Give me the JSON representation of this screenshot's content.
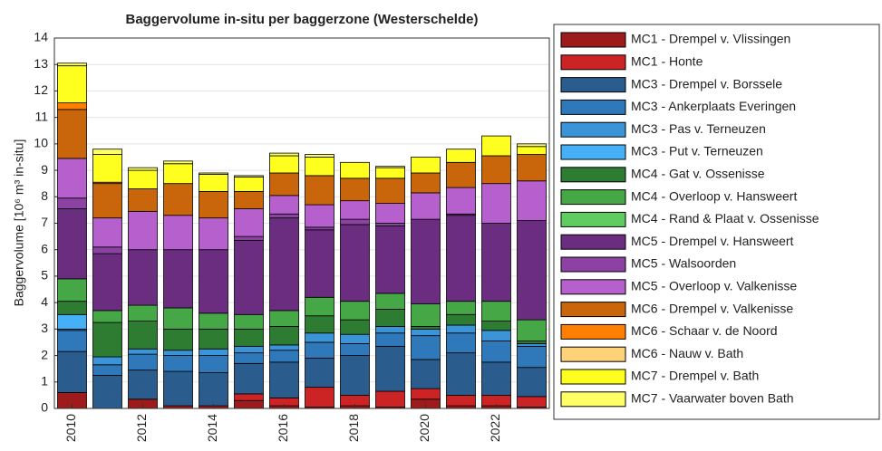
{
  "chart_data": {
    "type": "stacked_bar",
    "title": "Baggervolume in-situ per baggerzone (Westerschelde)",
    "y_label": "Baggervolume [10⁶ m³ in-situ]",
    "categories": [
      "2010",
      null,
      "2012",
      null,
      "2014",
      null,
      "2016",
      null,
      "2018",
      null,
      "2020",
      null,
      "2022",
      null
    ],
    "ylim": [
      0,
      14
    ],
    "yticks": [
      0,
      1,
      2,
      3,
      4,
      5,
      6,
      7,
      8,
      9,
      10,
      11,
      12,
      13,
      14
    ],
    "grid": true,
    "legend": "outside right",
    "series": [
      {
        "name": "MC1 - Drempel v. Vlissingen",
        "color": "#9e1b1b",
        "values": [
          0.6,
          0,
          0.35,
          0.1,
          0.1,
          0.3,
          0.1,
          0.05,
          0.1,
          0.05,
          0.35,
          0.1,
          0.1,
          0.05
        ]
      },
      {
        "name": "MC1 - Honte",
        "color": "#cc2424",
        "values": [
          0,
          0,
          0,
          0,
          0,
          0.25,
          0.3,
          0.75,
          0.4,
          0.6,
          0.4,
          0.4,
          0.4,
          0.4
        ]
      },
      {
        "name": "MC3 - Drempel v. Borssele",
        "color": "#2a5c8e",
        "values": [
          1.55,
          1.25,
          1.1,
          1.3,
          1.25,
          1.15,
          1.35,
          1.1,
          1.5,
          1.7,
          1.1,
          1.6,
          1.25,
          1.1
        ]
      },
      {
        "name": "MC3 - Ankerplaats Everingen",
        "color": "#2f78b9",
        "values": [
          0.8,
          0.4,
          0.6,
          0.6,
          0.65,
          0.4,
          0.45,
          0.6,
          0.45,
          0.5,
          0.9,
          0.75,
          0.8,
          0.8
        ]
      },
      {
        "name": "MC3 - Pas v. Terneuzen",
        "color": "#3b94d8",
        "values": [
          0.05,
          0.3,
          0.2,
          0.2,
          0.25,
          0.25,
          0.2,
          0.35,
          0.35,
          0.25,
          0.25,
          0.3,
          0.4,
          0.1
        ]
      },
      {
        "name": "MC3 - Put v. Terneuzen",
        "color": "#45b0f5",
        "values": [
          0.55,
          0,
          0,
          0,
          0,
          0,
          0,
          0,
          0,
          0,
          0,
          0,
          0,
          0
        ]
      },
      {
        "name": "MC4 - Gat v. Ossenisse",
        "color": "#2e7b32",
        "values": [
          0.5,
          1.3,
          1.05,
          0.8,
          0.75,
          0.65,
          0.7,
          0.65,
          0.55,
          0.65,
          0.1,
          0.4,
          0.35,
          0.1
        ]
      },
      {
        "name": "MC4 - Overloop v. Hansweert",
        "color": "#45a745",
        "values": [
          0.85,
          0.45,
          0.6,
          0.8,
          0.6,
          0.55,
          0.6,
          0.7,
          0.7,
          0.6,
          0.85,
          0.5,
          0.75,
          0.8
        ]
      },
      {
        "name": "MC4 - Rand & Plaat v. Ossenisse",
        "color": "#5fcc5f",
        "values": [
          0,
          0,
          0,
          0,
          0,
          0,
          0,
          0,
          0,
          0,
          0,
          0,
          0,
          0
        ]
      },
      {
        "name": "MC5 - Drempel v. Hansweert",
        "color": "#6b2d7f",
        "values": [
          2.65,
          2.15,
          2.1,
          2.2,
          2.4,
          2.8,
          3.5,
          2.55,
          2.9,
          2.55,
          3.2,
          3.25,
          2.95,
          3.75
        ]
      },
      {
        "name": "MC5 - Walsoorden",
        "color": "#8b42a2",
        "values": [
          0.4,
          0.25,
          0,
          0,
          0,
          0.15,
          0.15,
          0.1,
          0.2,
          0.1,
          0,
          0.05,
          0,
          0
        ]
      },
      {
        "name": "MC5 - Overloop v. Valkenisse",
        "color": "#b560cc",
        "values": [
          1.5,
          1.1,
          1.45,
          1.3,
          1.2,
          1.05,
          0.7,
          0.85,
          0.7,
          0.75,
          1.0,
          1.0,
          1.5,
          1.5
        ]
      },
      {
        "name": "MC6 - Drempel v. Valkenisse",
        "color": "#c9650b",
        "values": [
          1.85,
          1.3,
          0.85,
          1.2,
          1.0,
          0.65,
          0.85,
          1.1,
          0.85,
          0.95,
          0.75,
          0.95,
          1.05,
          1.0
        ]
      },
      {
        "name": "MC6 - Schaar v. de Noord",
        "color": "#ff8000",
        "values": [
          0.25,
          0.05,
          0,
          0,
          0,
          0,
          0,
          0,
          0,
          0,
          0,
          0,
          0,
          0
        ]
      },
      {
        "name": "MC6 - Nauw v. Bath",
        "color": "#ffd27a",
        "values": [
          0,
          0,
          0,
          0,
          0,
          0,
          0,
          0,
          0,
          0,
          0,
          0,
          0,
          0
        ]
      },
      {
        "name": "MC7 - Drempel v. Bath",
        "color": "#ffff1f",
        "values": [
          1.4,
          1.05,
          0.7,
          0.75,
          0.65,
          0.55,
          0.65,
          0.7,
          0.6,
          0.4,
          0.6,
          0.5,
          0.75,
          0.3
        ]
      },
      {
        "name": "MC7 - Vaarwater boven Bath",
        "color": "#ffff66",
        "values": [
          0.1,
          0.2,
          0.1,
          0.1,
          0.05,
          0.05,
          0.1,
          0.1,
          0,
          0.05,
          0,
          0,
          0,
          0.1
        ]
      }
    ]
  }
}
